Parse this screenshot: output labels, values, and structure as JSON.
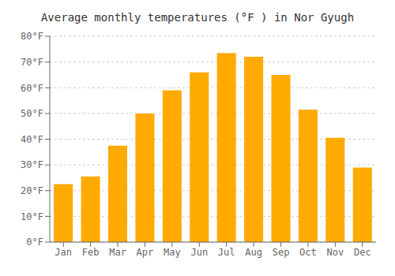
{
  "chart_data": {
    "type": "bar",
    "title": "Average monthly temperatures (°F ) in Nor Gyugh",
    "categories": [
      "Jan",
      "Feb",
      "Mar",
      "Apr",
      "May",
      "Jun",
      "Jul",
      "Aug",
      "Sep",
      "Oct",
      "Nov",
      "Dec"
    ],
    "values": [
      22.5,
      25.5,
      37.5,
      50.0,
      59.0,
      66.0,
      73.5,
      72.0,
      65.0,
      51.5,
      40.5,
      29.0
    ],
    "color": "#FFAA00",
    "ylim": [
      0,
      80
    ],
    "yticks": [
      {
        "value": 0,
        "label": "0°F"
      },
      {
        "value": 10,
        "label": "10°F"
      },
      {
        "value": 20,
        "label": "20°F"
      },
      {
        "value": 30,
        "label": "30°F"
      },
      {
        "value": 40,
        "label": "40°F"
      },
      {
        "value": 50,
        "label": "50°F"
      },
      {
        "value": 60,
        "label": "60°F"
      },
      {
        "value": 70,
        "label": "70°F"
      },
      {
        "value": 80,
        "label": "80°F"
      }
    ],
    "grid": true
  }
}
